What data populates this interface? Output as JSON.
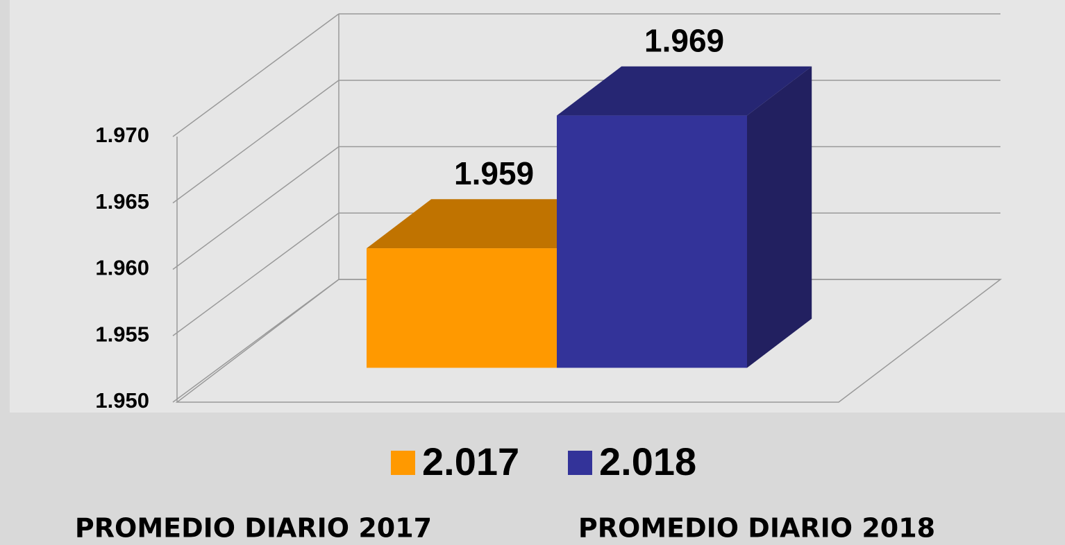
{
  "chart_data": {
    "type": "bar3d",
    "categories": [
      null
    ],
    "series": [
      {
        "name": "2.017",
        "color": "#ff9900",
        "top_color": "#c07300",
        "side_color": "#b36b00",
        "values": [
          1959
        ],
        "value_labels": [
          "1.959"
        ]
      },
      {
        "name": "2.018",
        "color": "#333399",
        "top_color": "#262673",
        "side_color": "#222060",
        "values": [
          1969
        ],
        "value_labels": [
          "1.969"
        ]
      }
    ],
    "ylim": [
      1950,
      1970
    ],
    "yticks": [
      {
        "value": 1950,
        "label": "1.950"
      },
      {
        "value": 1955,
        "label": "1.955"
      },
      {
        "value": 1960,
        "label": "1.960"
      },
      {
        "value": 1965,
        "label": "1.965"
      },
      {
        "value": 1970,
        "label": "1.970"
      }
    ],
    "grid": true,
    "legend": "bottom",
    "annotations": [
      "PROMEDIO DIARIO 2017",
      "PROMEDIO DIARIO 2018"
    ]
  }
}
